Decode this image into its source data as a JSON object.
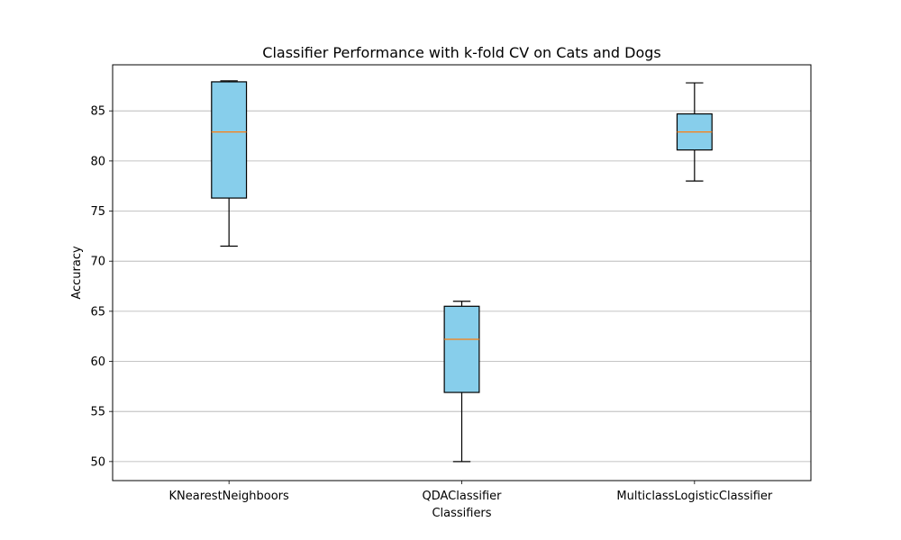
{
  "chart_data": {
    "type": "box",
    "title": "Classifier Performance with k-fold CV on Cats and Dogs",
    "xlabel": "Classifiers",
    "ylabel": "Accuracy",
    "ylim": [
      48.1,
      89.6
    ],
    "yticks": [
      50,
      55,
      60,
      65,
      70,
      75,
      80,
      85
    ],
    "grid": "y",
    "box_color": "#87ceeb",
    "median_color": "#ff7f0e",
    "categories": [
      "KNearestNeighboors",
      "QDAClassifier",
      "MulticlassLogisticClassifier"
    ],
    "boxes": [
      {
        "whislo": 71.5,
        "q1": 76.3,
        "median": 82.9,
        "q3": 87.9,
        "whishi": 88.0
      },
      {
        "whislo": 50.0,
        "q1": 56.9,
        "median": 62.2,
        "q3": 65.5,
        "whishi": 66.0
      },
      {
        "whislo": 78.0,
        "q1": 81.1,
        "median": 82.9,
        "q3": 84.7,
        "whishi": 87.8
      }
    ]
  }
}
